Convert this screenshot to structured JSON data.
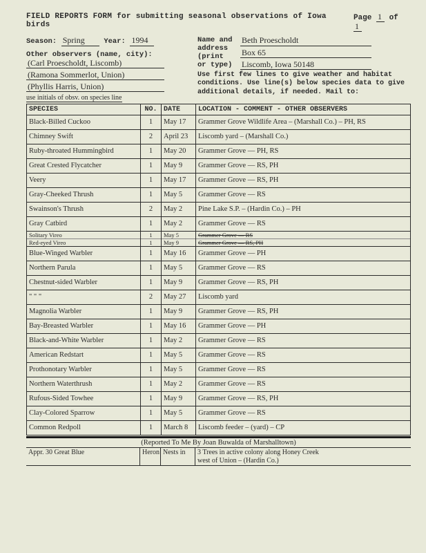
{
  "title": "FIELD REPORTS FORM for submitting seasonal observations of Iowa birds",
  "page_label": "Page",
  "page_cur": "1",
  "page_of": "of",
  "page_tot": "1",
  "season_label": "Season:",
  "season": "Spring",
  "year_label": "Year:",
  "year": "1994",
  "name_label": "Name and",
  "addr_label": "address",
  "print_label": "(print",
  "ortype_label": "or type)",
  "name_val": "Beth Proescholdt",
  "addr1": "Box 65",
  "addr2": "Liscomb, Iowa 50148",
  "other_obs_label": "Other observers (name, city):",
  "obs1": "(Carl Proescholdt, Liscomb)",
  "obs2": "(Ramona Sommerlot, Union)",
  "obs3": "(Phyllis Harris, Union)",
  "initials_note": "use initials of obsv. on species line",
  "instr": "Use first few lines to give weather and habitat conditions. Use line(s) below species data to give additional details, if needed. Mail to:",
  "hdr_sp": "SPECIES",
  "hdr_no": "NO.",
  "hdr_dt": "DATE",
  "hdr_loc": "LOCATION - COMMENT - OTHER OBSERVERS",
  "rows": [
    {
      "sp": "Black-Billed Cuckoo",
      "no": "1",
      "dt": "May 17",
      "loc": "Grammer Grove Wildlife Area – (Marshall Co.) – PH, RS"
    },
    {
      "sp": "Chimney Swift",
      "no": "2",
      "dt": "April 23",
      "loc": "Liscomb yard – (Marshall Co.)"
    },
    {
      "sp": "Ruby-throated Hummingbird",
      "no": "1",
      "dt": "May 20",
      "loc": "Grammer Grove        — PH, RS"
    },
    {
      "sp": "Great Crested Flycatcher",
      "no": "1",
      "dt": "May 9",
      "loc": "Grammer Grove        — RS, PH"
    },
    {
      "sp": "Veery",
      "no": "1",
      "dt": "May 17",
      "loc": "Grammer Grove        — RS, PH"
    },
    {
      "sp": "Gray-Cheeked Thrush",
      "no": "1",
      "dt": "May 5",
      "loc": "Grammer Grove        — RS"
    },
    {
      "sp": "Swainson's Thrush",
      "no": "2",
      "dt": "May 2",
      "loc": "Pine Lake S.P. – (Hardin Co.) – PH"
    },
    {
      "sp": "Gray Catbird",
      "no": "1",
      "dt": "May 2",
      "loc": "Grammer Grove        — RS"
    },
    {
      "split": true,
      "sp1": "Solitary Vireo",
      "no1": "1",
      "dt1": "May 5",
      "loc1": "Grammer   Grove        — RS",
      "sp2": "Red-eyed Vireo",
      "no2": "1",
      "dt2": "May 9",
      "loc2": "Grammer   Grove        — RS, PH"
    },
    {
      "sp": "Blue-Winged Warbler",
      "no": "1",
      "dt": "May 16",
      "loc": "Grammer Grove       — PH"
    },
    {
      "sp": "Northern Parula",
      "no": "1",
      "dt": "May 5",
      "loc": "Grammer Grove       — RS"
    },
    {
      "sp": "Chestnut-sided Warbler",
      "no": "1",
      "dt": "May 9",
      "loc": "Grammer Grove       — RS, PH"
    },
    {
      "sp": "   \"        \"       \"",
      "no": "2",
      "dt": "May 27",
      "loc": "Liscomb yard"
    },
    {
      "sp": "Magnolia Warbler",
      "no": "1",
      "dt": "May 9",
      "loc": "Grammer Grove       — RS, PH"
    },
    {
      "sp": "Bay-Breasted Warbler",
      "no": "1",
      "dt": "May 16",
      "loc": "Grammer Grove       — PH"
    },
    {
      "sp": "Black-and-White Warbler",
      "no": "1",
      "dt": "May 2",
      "loc": "Grammer Grove       — RS"
    },
    {
      "sp": "American Redstart",
      "no": "1",
      "dt": "May 5",
      "loc": "Grammer Grove       — RS"
    },
    {
      "sp": "Prothonotary Warbler",
      "no": "1",
      "dt": "May 5",
      "loc": "Grammer Grove       — RS"
    },
    {
      "sp": "Northern Waterthrush",
      "no": "1",
      "dt": "May 2",
      "loc": "Grammer Grove       — RS"
    },
    {
      "sp": "Rufous-Sided Towhee",
      "no": "1",
      "dt": "May 9",
      "loc": "Grammer Grove       — RS, PH"
    },
    {
      "sp": "Clay-Colored Sparrow",
      "no": "1",
      "dt": "May 5",
      "loc": "Grammer Grove       — RS"
    },
    {
      "sp": "Common Redpoll",
      "no": "1",
      "dt": "March 8",
      "loc": "Liscomb feeder – (yard) – CP"
    }
  ],
  "bottom_reported": "(Reported To Me By Joan Buwalda of Marshalltown)",
  "bottom_a": "Appr. 30 Great Blue",
  "bottom_b": "Heron",
  "bottom_c": "Nests in",
  "bottom_d": "3 Trees in active colony along Honey Creek\nwest of Union – (Hardin Co.)"
}
